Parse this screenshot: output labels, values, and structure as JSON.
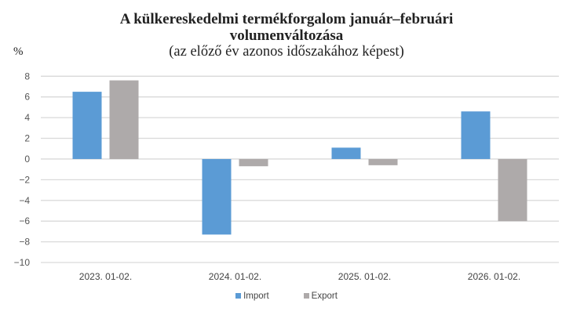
{
  "title": {
    "line1": "A külkereskedelmi termékforgalom január–februári",
    "line2": "volumenváltozása",
    "subtitle": "(az előző év azonos időszakához képest)"
  },
  "unit_label": "%",
  "colors": {
    "import": "#5b9bd5",
    "export": "#aeaaaa",
    "grid": "#d9d9d9"
  },
  "legend": [
    {
      "label": "Import",
      "color": "#5b9bd5"
    },
    {
      "label": "Export",
      "color": "#aeaaaa"
    }
  ],
  "chart_data": {
    "type": "bar",
    "title": "A külkereskedelmi termékforgalom január–februári volumenváltozása (az előző év azonos időszakához képest)",
    "xlabel": "",
    "ylabel": "%",
    "categories": [
      "2023. 01-02.",
      "2024. 01-02.",
      "2025. 01-02.",
      "2026. 01-02."
    ],
    "series": [
      {
        "name": "Import",
        "values": [
          6.5,
          -7.3,
          1.1,
          4.6
        ]
      },
      {
        "name": "Export",
        "values": [
          7.6,
          -0.7,
          -0.6,
          -6.0
        ]
      }
    ],
    "ylim": [
      -10,
      8
    ],
    "yticks": [
      "8",
      "6",
      "4",
      "2",
      "0",
      "−2",
      "−4",
      "−6",
      "−8",
      "−10"
    ],
    "grid": true,
    "legend_position": "bottom"
  }
}
